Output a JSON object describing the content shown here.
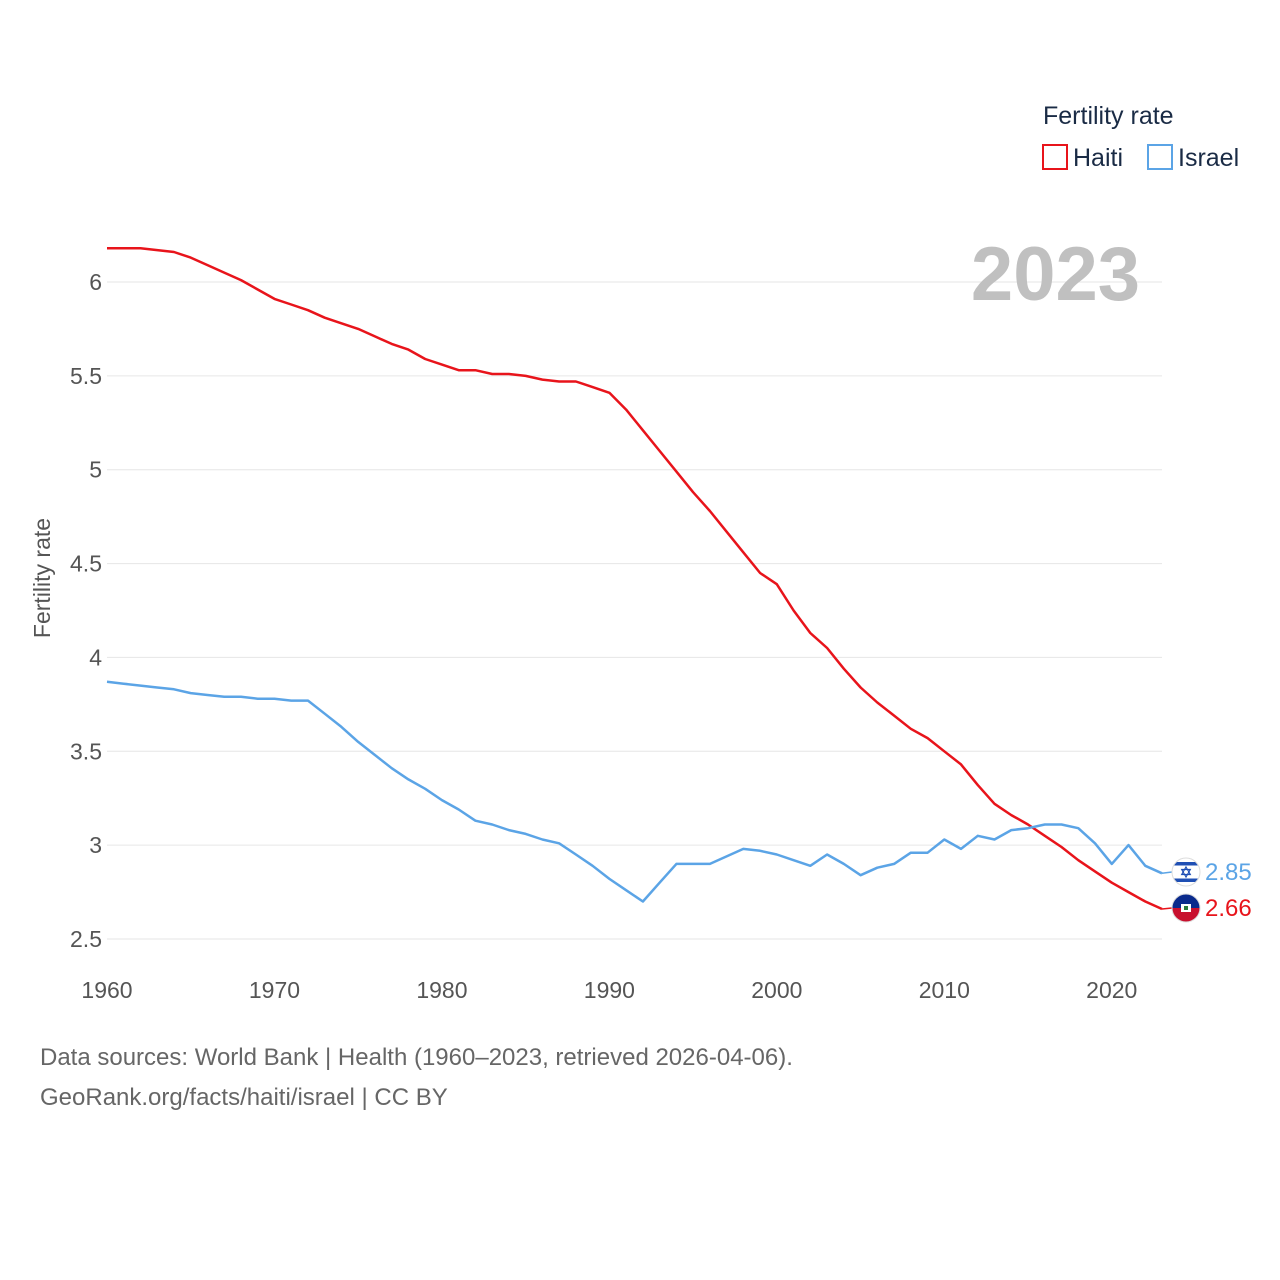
{
  "chart_data": {
    "type": "line",
    "title": "Fertility rate",
    "current_year": "2023",
    "xlabel": "",
    "ylabel": "Fertility rate",
    "xlim": [
      1960,
      2023
    ],
    "ylim": [
      2.5,
      6.2
    ],
    "x_ticks": [
      1960,
      1970,
      1980,
      1990,
      2000,
      2010,
      2020
    ],
    "y_ticks": [
      2.5,
      3,
      3.5,
      4,
      4.5,
      5,
      5.5,
      6
    ],
    "legend_position": "top-right",
    "x": [
      1960,
      1961,
      1962,
      1963,
      1964,
      1965,
      1966,
      1967,
      1968,
      1969,
      1970,
      1971,
      1972,
      1973,
      1974,
      1975,
      1976,
      1977,
      1978,
      1979,
      1980,
      1981,
      1982,
      1983,
      1984,
      1985,
      1986,
      1987,
      1988,
      1989,
      1990,
      1991,
      1992,
      1993,
      1994,
      1995,
      1996,
      1997,
      1998,
      1999,
      2000,
      2001,
      2002,
      2003,
      2004,
      2005,
      2006,
      2007,
      2008,
      2009,
      2010,
      2011,
      2012,
      2013,
      2014,
      2015,
      2016,
      2017,
      2018,
      2019,
      2020,
      2021,
      2022,
      2023
    ],
    "series": [
      {
        "name": "Haiti",
        "color": "#e8141b",
        "end_value": "2.66",
        "flag": "haiti-flag-icon",
        "values": [
          6.18,
          6.18,
          6.18,
          6.17,
          6.16,
          6.13,
          6.09,
          6.05,
          6.01,
          5.96,
          5.91,
          5.88,
          5.85,
          5.81,
          5.78,
          5.75,
          5.71,
          5.67,
          5.64,
          5.59,
          5.56,
          5.53,
          5.53,
          5.51,
          5.51,
          5.5,
          5.48,
          5.47,
          5.47,
          5.44,
          5.41,
          5.32,
          5.21,
          5.1,
          4.99,
          4.88,
          4.78,
          4.67,
          4.56,
          4.45,
          4.39,
          4.25,
          4.13,
          4.05,
          3.94,
          3.84,
          3.76,
          3.69,
          3.62,
          3.57,
          3.5,
          3.43,
          3.32,
          3.22,
          3.16,
          3.11,
          3.05,
          2.99,
          2.92,
          2.86,
          2.8,
          2.75,
          2.7,
          2.66
        ]
      },
      {
        "name": "Israel",
        "color": "#5ba4e6",
        "end_value": "2.85",
        "flag": "israel-flag-icon",
        "values": [
          3.87,
          3.86,
          3.85,
          3.84,
          3.83,
          3.81,
          3.8,
          3.79,
          3.79,
          3.78,
          3.78,
          3.77,
          3.77,
          3.7,
          3.63,
          3.55,
          3.48,
          3.41,
          3.35,
          3.3,
          3.24,
          3.19,
          3.13,
          3.11,
          3.08,
          3.06,
          3.03,
          3.01,
          2.95,
          2.89,
          2.82,
          2.76,
          2.7,
          2.8,
          2.9,
          2.9,
          2.9,
          2.94,
          2.98,
          2.97,
          2.95,
          2.92,
          2.89,
          2.95,
          2.9,
          2.84,
          2.88,
          2.9,
          2.96,
          2.96,
          3.03,
          2.98,
          3.05,
          3.03,
          3.08,
          3.09,
          3.11,
          3.11,
          3.09,
          3.01,
          2.9,
          3.0,
          2.89,
          2.85
        ]
      }
    ]
  },
  "legend": {
    "title": "Fertility rate",
    "items": [
      "Haiti",
      "Israel"
    ]
  },
  "footer": {
    "line1": "Data sources: World Bank | Health (1960–2023, retrieved 2026-04-06).",
    "line2": "GeoRank.org/facts/haiti/israel | CC BY"
  }
}
